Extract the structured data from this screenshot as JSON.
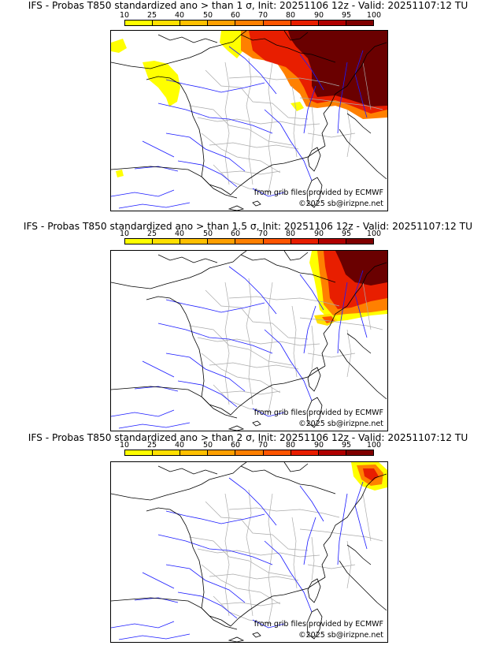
{
  "colorbar": {
    "ticks": [
      "10",
      "25",
      "40",
      "50",
      "60",
      "70",
      "80",
      "90",
      "95",
      "100"
    ],
    "colors": [
      "#ffff00",
      "#ffe000",
      "#ffc000",
      "#ffa000",
      "#ff8000",
      "#ff5500",
      "#e81e00",
      "#b00000",
      "#800000"
    ]
  },
  "credits": {
    "source": "from grib files provided by ECMWF",
    "copyright": "©2025 sb@irizpne.net"
  },
  "colors": {
    "coast": "#000000",
    "rivers": "#1a1aff",
    "borders": "#aaaaaa",
    "dark_red": "#6a0000"
  },
  "panels": [
    {
      "title": "IFS - Probas T850  standardized ano > than 1 σ, Init: 20251106 12z - Valid: 20251107:12 TU",
      "threshold_sigma": 1
    },
    {
      "title": "IFS - Probas T850  standardized ano > than 1.5 σ, Init: 20251106 12z - Valid: 20251107:12 TU",
      "threshold_sigma": 1.5
    },
    {
      "title": "IFS - Probas T850  standardized ano > than 2 σ, Init: 20251106 12z - Valid: 20251107:12 TU",
      "threshold_sigma": 2
    }
  ]
}
